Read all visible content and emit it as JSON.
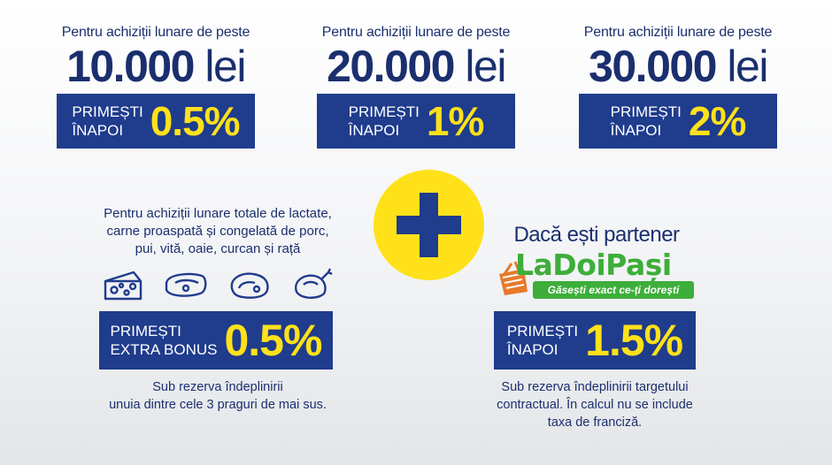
{
  "colors": {
    "navy": "#1f3c8d",
    "yellow": "#ffe11a",
    "green": "#3dae3a",
    "text": "#1b2f6e"
  },
  "tiers": [
    {
      "pre": "Pentru achiziții lunare de peste",
      "amount": "10.000",
      "unit": "lei",
      "label_line1": "PRIMEȘTI",
      "label_line2": "ÎNAPOI",
      "percent": "0.5%"
    },
    {
      "pre": "Pentru achiziții lunare de peste",
      "amount": "20.000",
      "unit": "lei",
      "label_line1": "PRIMEȘTI",
      "label_line2": "ÎNAPOI",
      "percent": "1%"
    },
    {
      "pre": "Pentru achiziții lunare de peste",
      "amount": "30.000",
      "unit": "lei",
      "label_line1": "PRIMEȘTI",
      "label_line2": "ÎNAPOI",
      "percent": "2%"
    }
  ],
  "bonus": {
    "desc_line1": "Pentru achiziții lunare totale de lactate,",
    "desc_line2": "carne proaspată și congelată de porc,",
    "desc_line3": "pui, vită, oaie, curcan și rață",
    "icons": [
      "cheese-icon",
      "pork-chop-icon",
      "steak-icon",
      "chicken-icon"
    ],
    "label_line1": "PRIMEȘTI",
    "label_line2": "EXTRA BONUS",
    "percent": "0.5%",
    "note_line1": "Sub rezerva îndeplinirii",
    "note_line2": "unuia dintre cele 3 praguri de mai sus."
  },
  "partner": {
    "title": "Dacă ești partener",
    "logo_word": "LaDoiPași",
    "logo_tagline": "Găsești exact ce-ți dorești",
    "label_line1": "PRIMEȘTI",
    "label_line2": "ÎNAPOI",
    "percent": "1.5%",
    "note_line1": "Sub rezerva îndeplinirii targetului",
    "note_line2": "contractual. În calcul nu se include",
    "note_line3": "taxa de franciză."
  }
}
